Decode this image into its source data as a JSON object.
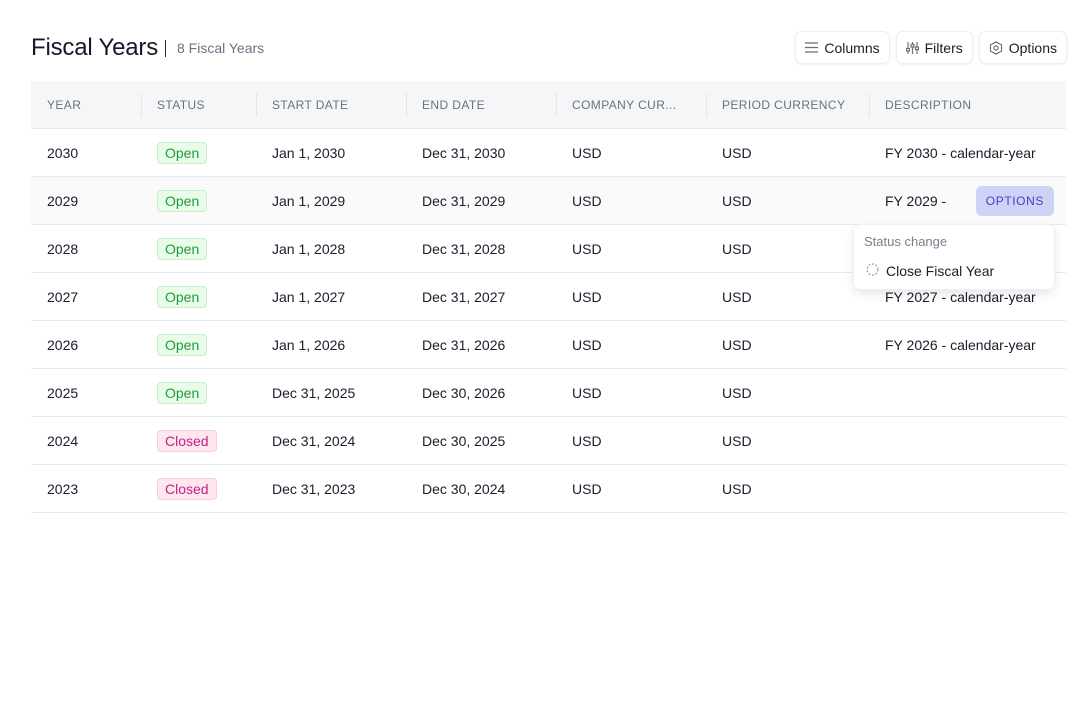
{
  "header": {
    "title": "Fiscal Years",
    "count": "8 Fiscal Years",
    "buttons": {
      "columns": "Columns",
      "filters": "Filters",
      "options": "Options"
    }
  },
  "table": {
    "columns": [
      "YEAR",
      "STATUS",
      "START DATE",
      "END DATE",
      "COMPANY CUR...",
      "PERIOD CURRENCY",
      "DESCRIPTION"
    ],
    "rows": [
      {
        "year": "2030",
        "status": "Open",
        "start": "Jan 1, 2030",
        "end": "Dec 31, 2030",
        "company_currency": "USD",
        "period_currency": "USD",
        "description": "FY 2030 - calendar-year"
      },
      {
        "year": "2029",
        "status": "Open",
        "start": "Jan 1, 2029",
        "end": "Dec 31, 2029",
        "company_currency": "USD",
        "period_currency": "USD",
        "description": "FY 2029 -"
      },
      {
        "year": "2028",
        "status": "Open",
        "start": "Jan 1, 2028",
        "end": "Dec 31, 2028",
        "company_currency": "USD",
        "period_currency": "USD",
        "description": ""
      },
      {
        "year": "2027",
        "status": "Open",
        "start": "Jan 1, 2027",
        "end": "Dec 31, 2027",
        "company_currency": "USD",
        "period_currency": "USD",
        "description": "FY 2027 - calendar-year"
      },
      {
        "year": "2026",
        "status": "Open",
        "start": "Jan 1, 2026",
        "end": "Dec 31, 2026",
        "company_currency": "USD",
        "period_currency": "USD",
        "description": "FY 2026 - calendar-year"
      },
      {
        "year": "2025",
        "status": "Open",
        "start": "Dec 31, 2025",
        "end": "Dec 30, 2026",
        "company_currency": "USD",
        "period_currency": "USD",
        "description": ""
      },
      {
        "year": "2024",
        "status": "Closed",
        "start": "Dec 31, 2024",
        "end": "Dec 30, 2025",
        "company_currency": "USD",
        "period_currency": "USD",
        "description": ""
      },
      {
        "year": "2023",
        "status": "Closed",
        "start": "Dec 31, 2023",
        "end": "Dec 30, 2024",
        "company_currency": "USD",
        "period_currency": "USD",
        "description": ""
      }
    ],
    "row_options_label": "OPTIONS"
  },
  "dropdown": {
    "heading": "Status change",
    "item": "Close Fiscal Year"
  },
  "colors": {
    "open_badge": "#1f9d3a",
    "closed_badge": "#c1227a",
    "accent": "#3f43c9"
  }
}
